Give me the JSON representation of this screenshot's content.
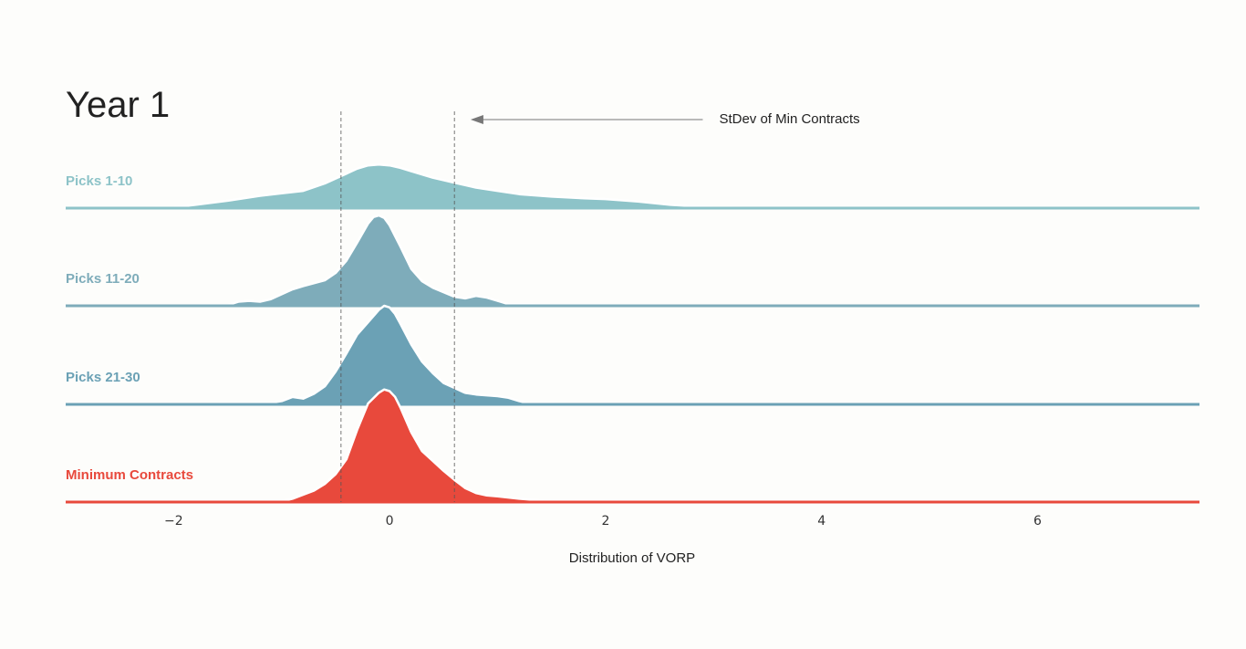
{
  "chart_data": {
    "type": "area",
    "subtype": "ridgeline",
    "title": "Year 1",
    "xlabel": "Distribution of VORP",
    "xlim": [
      -3.0,
      7.5
    ],
    "x_ticks": [
      -2,
      0,
      2,
      4,
      6
    ],
    "x_tick_labels": [
      "−2",
      "0",
      "2",
      "4",
      "6"
    ],
    "grid": false,
    "legend": "none (series labelled at left of each ridge)",
    "vlines": [
      -0.45,
      0.6
    ],
    "annotation": {
      "text": "StDev of Min Contracts",
      "arrow_from_x": 2.9,
      "arrow_to_x": 0.75
    },
    "series": [
      {
        "name": "Picks 1-10",
        "color": "#8dc3c8",
        "x": [
          -3.0,
          -2.5,
          -2.0,
          -1.8,
          -1.5,
          -1.2,
          -1.0,
          -0.8,
          -0.6,
          -0.4,
          -0.3,
          -0.2,
          -0.1,
          0.0,
          0.1,
          0.2,
          0.4,
          0.6,
          0.8,
          1.0,
          1.2,
          1.5,
          1.8,
          2.0,
          2.3,
          2.6,
          3.0,
          3.5,
          5.0,
          7.5
        ],
        "y": [
          0.0,
          0.0,
          0.01,
          0.04,
          0.09,
          0.15,
          0.18,
          0.21,
          0.3,
          0.42,
          0.48,
          0.52,
          0.53,
          0.52,
          0.49,
          0.45,
          0.37,
          0.31,
          0.25,
          0.21,
          0.17,
          0.14,
          0.12,
          0.11,
          0.08,
          0.04,
          0.01,
          0.0,
          0.0,
          0.0
        ]
      },
      {
        "name": "Picks 11-20",
        "color": "#7eacba",
        "x": [
          -3.0,
          -2.0,
          -1.5,
          -1.4,
          -1.3,
          -1.2,
          -1.1,
          -0.9,
          -0.8,
          -0.6,
          -0.5,
          -0.4,
          -0.3,
          -0.2,
          -0.15,
          -0.1,
          -0.05,
          0.0,
          0.1,
          0.2,
          0.3,
          0.4,
          0.6,
          0.7,
          0.8,
          0.9,
          1.0,
          1.1,
          1.3,
          1.5,
          2.0,
          3.0,
          7.5
        ],
        "y": [
          0.0,
          0.0,
          0.01,
          0.05,
          0.06,
          0.05,
          0.08,
          0.2,
          0.24,
          0.31,
          0.4,
          0.55,
          0.77,
          1.0,
          1.08,
          1.1,
          1.07,
          0.98,
          0.72,
          0.45,
          0.3,
          0.22,
          0.11,
          0.09,
          0.12,
          0.1,
          0.06,
          0.02,
          0.02,
          0.01,
          0.01,
          0.0,
          0.0
        ]
      },
      {
        "name": "Picks 21-30",
        "color": "#6ba1b5",
        "x": [
          -3.0,
          -2.0,
          -1.3,
          -1.1,
          -1.0,
          -0.9,
          -0.8,
          -0.7,
          -0.6,
          -0.5,
          -0.4,
          -0.3,
          -0.2,
          -0.1,
          -0.05,
          0.0,
          0.05,
          0.1,
          0.2,
          0.3,
          0.4,
          0.5,
          0.6,
          0.7,
          0.8,
          0.9,
          1.0,
          1.1,
          1.2,
          1.3,
          2.0,
          7.5
        ],
        "y": [
          0.0,
          0.0,
          0.01,
          0.02,
          0.04,
          0.09,
          0.07,
          0.13,
          0.22,
          0.4,
          0.62,
          0.85,
          1.0,
          1.15,
          1.2,
          1.18,
          1.1,
          0.98,
          0.73,
          0.52,
          0.38,
          0.26,
          0.2,
          0.14,
          0.12,
          0.11,
          0.1,
          0.08,
          0.04,
          0.01,
          0.0,
          0.0
        ]
      },
      {
        "name": "Minimum Contracts",
        "color": "#e8493c",
        "x": [
          -3.0,
          -1.5,
          -1.0,
          -0.9,
          -0.8,
          -0.7,
          -0.6,
          -0.5,
          -0.4,
          -0.3,
          -0.2,
          -0.1,
          -0.05,
          0.0,
          0.05,
          0.1,
          0.2,
          0.3,
          0.4,
          0.5,
          0.6,
          0.7,
          0.8,
          0.9,
          1.0,
          1.2,
          1.5,
          1.8,
          2.0,
          3.0,
          7.5
        ],
        "y": [
          0.0,
          0.0,
          0.01,
          0.04,
          0.09,
          0.14,
          0.22,
          0.34,
          0.52,
          0.88,
          1.2,
          1.33,
          1.37,
          1.35,
          1.28,
          1.15,
          0.85,
          0.62,
          0.5,
          0.38,
          0.27,
          0.17,
          0.11,
          0.08,
          0.07,
          0.04,
          0.01,
          0.02,
          0.01,
          0.0,
          0.0
        ]
      }
    ]
  }
}
